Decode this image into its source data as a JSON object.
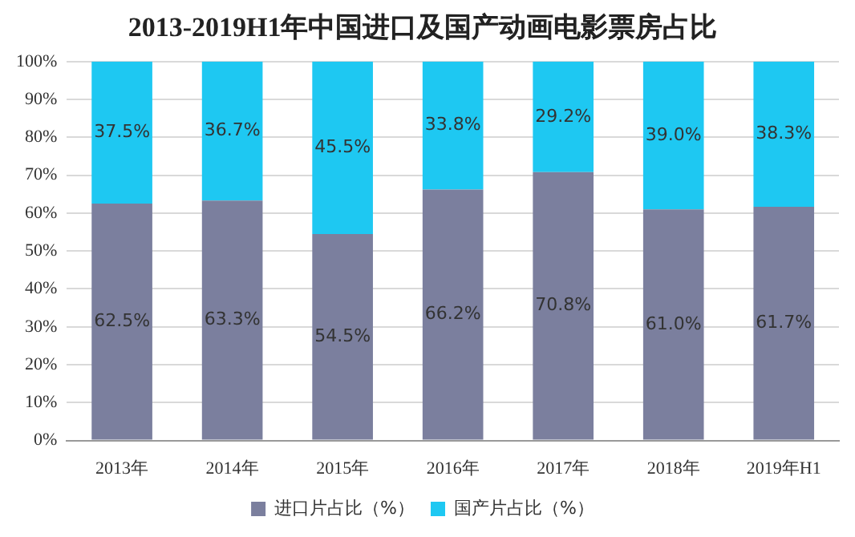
{
  "chart_data": {
    "type": "bar",
    "title": "2013-2019H1年中国进口及国产动画电影票房占比",
    "categories": [
      "2013年",
      "2014年",
      "2015年",
      "2016年",
      "2017年",
      "2018年",
      "2019年H1"
    ],
    "series": [
      {
        "name": "进口片占比（%）",
        "color": "#7b7f9e",
        "values": [
          62.5,
          63.3,
          54.5,
          66.2,
          70.8,
          61.0,
          61.7
        ]
      },
      {
        "name": "国产片占比（%）",
        "color": "#1ec8f2",
        "values": [
          37.5,
          36.7,
          45.5,
          33.8,
          29.2,
          39.0,
          38.3
        ]
      }
    ],
    "value_labels": [
      [
        "62.5%",
        "63.3%",
        "54.5%",
        "66.2%",
        "70.8%",
        "61.0%",
        "61.7%"
      ],
      [
        "37.5%",
        "36.7%",
        "45.5%",
        "33.8%",
        "29.2%",
        "39.0%",
        "38.3%"
      ]
    ],
    "stacked": true,
    "ylim": [
      0,
      100
    ],
    "yticks": [
      {
        "value": 0,
        "label": "0%"
      },
      {
        "value": 10,
        "label": "10%"
      },
      {
        "value": 20,
        "label": "20%"
      },
      {
        "value": 30,
        "label": "30%"
      },
      {
        "value": 40,
        "label": "40%"
      },
      {
        "value": 50,
        "label": "50%"
      },
      {
        "value": 60,
        "label": "60%"
      },
      {
        "value": 70,
        "label": "70%"
      },
      {
        "value": 80,
        "label": "80%"
      },
      {
        "value": 90,
        "label": "90%"
      },
      {
        "value": 100,
        "label": "100%"
      }
    ],
    "grid": "y",
    "legend": "bottom"
  }
}
